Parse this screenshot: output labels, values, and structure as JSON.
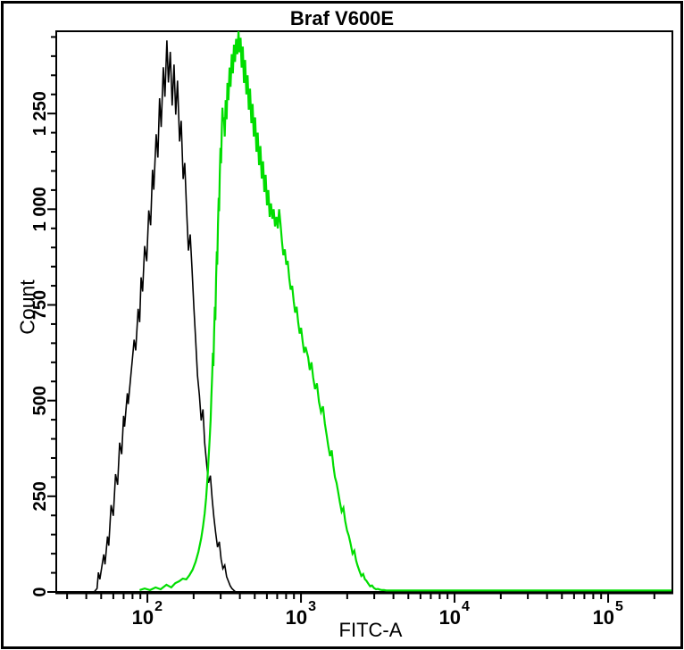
{
  "window": {
    "background": "#ffffff",
    "frame_border_color": "#000000"
  },
  "chart_data": {
    "type": "line",
    "chart_kind": "flow-cytometry-overlay-histogram",
    "title": "Braf V600E",
    "xlabel": "FITC-A",
    "ylabel": "Count",
    "grid": false,
    "legend": false,
    "x_axis": {
      "scale": "log",
      "min": 25.5,
      "max": 262000,
      "tick_label_base": "10",
      "major_tick_exponents": [
        2,
        3,
        4,
        5
      ],
      "minor_tick_multiples": [
        2,
        3,
        4,
        5,
        6,
        7,
        8,
        9
      ]
    },
    "y_axis": {
      "scale": "linear",
      "min": 0,
      "max": 1465,
      "minor_tick_step": 50,
      "major_ticks": [
        {
          "value": 0,
          "label": "0"
        },
        {
          "value": 250,
          "label": "250"
        },
        {
          "value": 500,
          "label": "500"
        },
        {
          "value": 750,
          "label": "750"
        },
        {
          "value": 1000,
          "label": "1 000"
        },
        {
          "value": 1250,
          "label": "1 250"
        }
      ]
    },
    "series": [
      {
        "name": "black-curve",
        "color": "#000000",
        "stroke_width": 1.6,
        "points": [
          [
            45,
            0
          ],
          [
            47,
            9
          ],
          [
            48,
            51
          ],
          [
            49,
            33
          ],
          [
            52,
            98
          ],
          [
            53,
            72
          ],
          [
            55,
            145
          ],
          [
            56,
            121
          ],
          [
            58,
            227
          ],
          [
            60,
            199
          ],
          [
            62,
            308
          ],
          [
            64,
            280
          ],
          [
            66,
            390
          ],
          [
            68,
            360
          ],
          [
            70,
            460
          ],
          [
            71,
            432
          ],
          [
            74,
            519
          ],
          [
            75,
            491
          ],
          [
            78,
            565
          ],
          [
            80,
            612
          ],
          [
            82,
            659
          ],
          [
            84,
            631
          ],
          [
            87,
            740
          ],
          [
            89,
            705
          ],
          [
            91,
            822
          ],
          [
            93,
            785
          ],
          [
            96,
            904
          ],
          [
            99,
            864
          ],
          [
            102,
            997
          ],
          [
            105,
            958
          ],
          [
            108,
            1103
          ],
          [
            110,
            1051
          ],
          [
            114,
            1196
          ],
          [
            117,
            1135
          ],
          [
            120,
            1290
          ],
          [
            123,
            1215
          ],
          [
            127,
            1371
          ],
          [
            130,
            1294
          ],
          [
            134,
            1441
          ],
          [
            137,
            1331
          ],
          [
            141,
            1411
          ],
          [
            145,
            1271
          ],
          [
            149,
            1378
          ],
          [
            153,
            1247
          ],
          [
            157,
            1336
          ],
          [
            162,
            1177
          ],
          [
            166,
            1231
          ],
          [
            171,
            1079
          ],
          [
            175,
            1121
          ],
          [
            180,
            997
          ],
          [
            185,
            892
          ],
          [
            190,
            934
          ],
          [
            195,
            846
          ],
          [
            201,
            740
          ],
          [
            206,
            659
          ],
          [
            212,
            565
          ],
          [
            218,
            514
          ],
          [
            224,
            448
          ],
          [
            230,
            477
          ],
          [
            236,
            390
          ],
          [
            243,
            336
          ],
          [
            250,
            285
          ],
          [
            257,
            304
          ],
          [
            264,
            243
          ],
          [
            271,
            196
          ],
          [
            278,
            157
          ],
          [
            286,
            117
          ],
          [
            294,
            131
          ],
          [
            302,
            86
          ],
          [
            310,
            61
          ],
          [
            319,
            70
          ],
          [
            328,
            40
          ],
          [
            337,
            28
          ],
          [
            346,
            16
          ],
          [
            355,
            9
          ],
          [
            364,
            5
          ],
          [
            375,
            0
          ]
        ]
      },
      {
        "name": "green-curve",
        "color": "#00dd00",
        "stroke_width": 2.2,
        "points": [
          [
            89,
            5
          ],
          [
            96,
            9
          ],
          [
            104,
            5
          ],
          [
            113,
            12
          ],
          [
            122,
            7
          ],
          [
            133,
            19
          ],
          [
            143,
            12
          ],
          [
            152,
            23
          ],
          [
            161,
            28
          ],
          [
            170,
            35
          ],
          [
            179,
            33
          ],
          [
            188,
            44
          ],
          [
            197,
            58
          ],
          [
            206,
            79
          ],
          [
            215,
            105
          ],
          [
            224,
            140
          ],
          [
            230,
            170
          ],
          [
            236,
            205
          ],
          [
            241,
            245
          ],
          [
            246,
            295
          ],
          [
            250,
            345
          ],
          [
            254,
            395
          ],
          [
            258,
            450
          ],
          [
            261,
            510
          ],
          [
            264,
            565
          ],
          [
            267,
            625
          ],
          [
            269,
            590
          ],
          [
            272,
            680
          ],
          [
            275,
            745
          ],
          [
            277,
            710
          ],
          [
            280,
            820
          ],
          [
            283,
            890
          ],
          [
            285,
            855
          ],
          [
            288,
            960
          ],
          [
            291,
            1030
          ],
          [
            293,
            995
          ],
          [
            296,
            1090
          ],
          [
            299,
            1160
          ],
          [
            302,
            1120
          ],
          [
            305,
            1210
          ],
          [
            308,
            1265
          ],
          [
            311,
            1230
          ],
          [
            315,
            1240
          ],
          [
            319,
            1190
          ],
          [
            323,
            1285
          ],
          [
            328,
            1235
          ],
          [
            332,
            1330
          ],
          [
            337,
            1285
          ],
          [
            343,
            1370
          ],
          [
            348,
            1320
          ],
          [
            354,
            1405
          ],
          [
            360,
            1355
          ],
          [
            366,
            1430
          ],
          [
            372,
            1385
          ],
          [
            378,
            1445
          ],
          [
            385,
            1405
          ],
          [
            392,
            1465
          ],
          [
            398,
            1410
          ],
          [
            404,
            1448
          ],
          [
            411,
            1370
          ],
          [
            418,
            1425
          ],
          [
            425,
            1330
          ],
          [
            433,
            1390
          ],
          [
            441,
            1300
          ],
          [
            449,
            1350
          ],
          [
            457,
            1260
          ],
          [
            466,
            1315
          ],
          [
            475,
            1225
          ],
          [
            484,
            1275
          ],
          [
            493,
            1190
          ],
          [
            503,
            1240
          ],
          [
            513,
            1150
          ],
          [
            523,
            1200
          ],
          [
            533,
            1115
          ],
          [
            544,
            1165
          ],
          [
            555,
            1080
          ],
          [
            566,
            1125
          ],
          [
            577,
            1045
          ],
          [
            589,
            1090
          ],
          [
            601,
            1010
          ],
          [
            613,
            1050
          ],
          [
            625,
            980
          ],
          [
            638,
            1015
          ],
          [
            651,
            975
          ],
          [
            664,
            1000
          ],
          [
            678,
            955
          ],
          [
            692,
            980
          ],
          [
            706,
            950
          ],
          [
            721,
            1000
          ],
          [
            736,
            960
          ],
          [
            752,
            915
          ],
          [
            768,
            880
          ],
          [
            785,
            895
          ],
          [
            802,
            855
          ],
          [
            820,
            865
          ],
          [
            838,
            820
          ],
          [
            857,
            790
          ],
          [
            876,
            800
          ],
          [
            896,
            760
          ],
          [
            916,
            730
          ],
          [
            937,
            745
          ],
          [
            958,
            705
          ],
          [
            980,
            675
          ],
          [
            1002,
            690
          ],
          [
            1025,
            655
          ],
          [
            1048,
            625
          ],
          [
            1071,
            640
          ],
          [
            1114,
            613
          ],
          [
            1140,
            580
          ],
          [
            1170,
            600
          ],
          [
            1200,
            560
          ],
          [
            1235,
            530
          ],
          [
            1270,
            545
          ],
          [
            1310,
            497
          ],
          [
            1350,
            470
          ],
          [
            1390,
            485
          ],
          [
            1430,
            440
          ],
          [
            1470,
            410
          ],
          [
            1506,
            380
          ],
          [
            1545,
            355
          ],
          [
            1585,
            370
          ],
          [
            1625,
            330
          ],
          [
            1665,
            300
          ],
          [
            1705,
            285
          ],
          [
            1742,
            264
          ],
          [
            1790,
            235
          ],
          [
            1840,
            210
          ],
          [
            1890,
            220
          ],
          [
            1940,
            185
          ],
          [
            1995,
            160
          ],
          [
            2047,
            147
          ],
          [
            2105,
            125
          ],
          [
            2165,
            100
          ],
          [
            2225,
            108
          ],
          [
            2285,
            82
          ],
          [
            2332,
            70
          ],
          [
            2400,
            55
          ],
          [
            2470,
            42
          ],
          [
            2540,
            47
          ],
          [
            2610,
            33
          ],
          [
            2658,
            30
          ],
          [
            2740,
            22
          ],
          [
            2820,
            15
          ],
          [
            2900,
            17
          ],
          [
            2990,
            10
          ],
          [
            3080,
            7
          ],
          [
            3170,
            8
          ],
          [
            3270,
            6
          ],
          [
            3370,
            5
          ],
          [
            3470,
            5
          ],
          [
            3600,
            4
          ],
          [
            3800,
            4
          ],
          [
            4100,
            4
          ],
          [
            4600,
            4
          ],
          [
            5500,
            4
          ],
          [
            7500,
            4
          ],
          [
            12000,
            4
          ],
          [
            25000,
            4
          ],
          [
            70000,
            4
          ],
          [
            180000,
            4
          ],
          [
            259000,
            4
          ]
        ]
      }
    ]
  }
}
